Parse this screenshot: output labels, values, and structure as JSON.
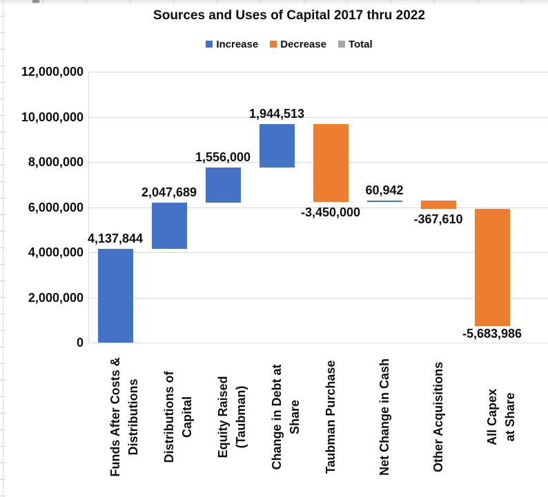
{
  "chart_data": {
    "type": "bar",
    "subtype": "waterfall",
    "title": "Sources and Uses of Capital 2017 thru 2022",
    "legend_position": "top",
    "grid": true,
    "legend": [
      {
        "label": "Increase",
        "color": "#4472C4"
      },
      {
        "label": "Decrease",
        "color": "#ED7D31"
      },
      {
        "label": "Total",
        "color": "#A5A5A5"
      }
    ],
    "y_axis": {
      "min": 0,
      "max": 12000000,
      "tick_interval": 2000000,
      "tick_labels": [
        "0",
        "2,000,000",
        "4,000,000",
        "6,000,000",
        "8,000,000",
        "10,000,000",
        "12,000,000"
      ]
    },
    "categories": [
      "Funds After Costs & Distributions",
      "Distributions of Capital",
      "Equity Raised (Taubman)",
      "Change in Debt at Share",
      "Taubman Purchase",
      "Net Change in Cash",
      "Other Acquisitions",
      "All Capex at Share"
    ],
    "points": [
      {
        "lines": [
          "Funds After Costs &",
          "Distributions"
        ],
        "value": 4137844,
        "label": "4,137,844",
        "type": "increase"
      },
      {
        "lines": [
          "Distributions of",
          "Capital"
        ],
        "value": 2047689,
        "label": "2,047,689",
        "type": "increase"
      },
      {
        "lines": [
          "Equity Raised",
          "(Taubman)"
        ],
        "value": 1556000,
        "label": "1,556,000",
        "type": "increase"
      },
      {
        "lines": [
          "Change in Debt at",
          "Share"
        ],
        "value": 1944513,
        "label": "1,944,513",
        "type": "increase"
      },
      {
        "lines": [
          "Taubman Purchase"
        ],
        "value": -3450000,
        "label": "-3,450,000",
        "type": "decrease"
      },
      {
        "lines": [
          "Net Change in Cash"
        ],
        "value": 60942,
        "label": "60,942",
        "type": "increase"
      },
      {
        "lines": [
          "Other Acquisitions"
        ],
        "value": -367610,
        "label": "-367,610",
        "type": "decrease"
      },
      {
        "lines": [
          "All Capex at Share"
        ],
        "value": -5683986,
        "label": "-5,683,986",
        "type": "decrease"
      }
    ]
  }
}
